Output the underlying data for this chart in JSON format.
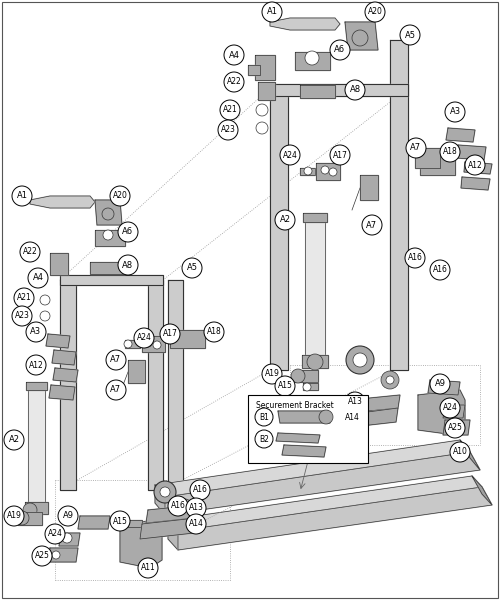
{
  "bg_color": "#ffffff",
  "securement_bracket_label": "Securement Bracket",
  "b1_label": "B1",
  "b2_label": "B2"
}
